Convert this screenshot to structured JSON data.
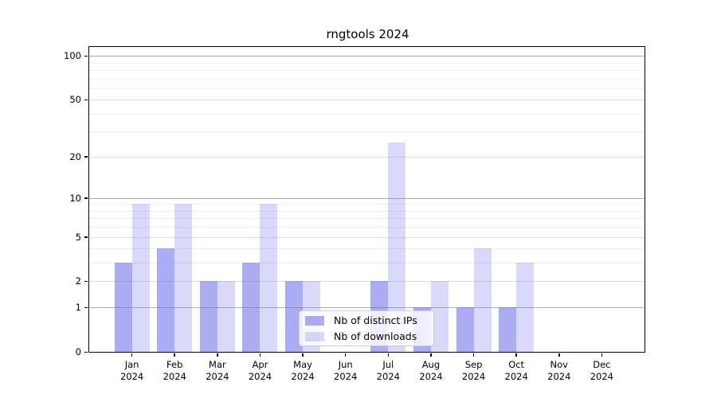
{
  "chart_data": {
    "type": "bar",
    "title": "rngtools 2024",
    "categories": [
      "Jan",
      "Feb",
      "Mar",
      "Apr",
      "May",
      "Jun",
      "Jul",
      "Aug",
      "Sep",
      "Oct",
      "Nov",
      "Dec"
    ],
    "category_year": "2024",
    "series": [
      {
        "name": "Nb of distinct IPs",
        "color": "rgba(104, 104, 232, 0.55)",
        "values": [
          3,
          4,
          2,
          3,
          2,
          0,
          2,
          1,
          1,
          1,
          0,
          0
        ]
      },
      {
        "name": "Nb of downloads",
        "color": "rgba(104, 104, 232, 0.25)",
        "values": [
          9,
          9,
          2,
          9,
          2,
          0,
          25,
          2,
          4,
          3,
          0,
          0
        ]
      }
    ],
    "yscale": "log1p",
    "ylim": [
      0,
      115
    ],
    "yticks": [
      0,
      1,
      2,
      5,
      10,
      20,
      50,
      100
    ],
    "yticks_decade": [
      1,
      10,
      100
    ],
    "yminor_ticks": [
      3,
      4,
      6,
      7,
      8,
      9,
      30,
      40,
      60,
      70,
      80,
      90
    ],
    "grid": true,
    "legend_position": "lower center"
  }
}
